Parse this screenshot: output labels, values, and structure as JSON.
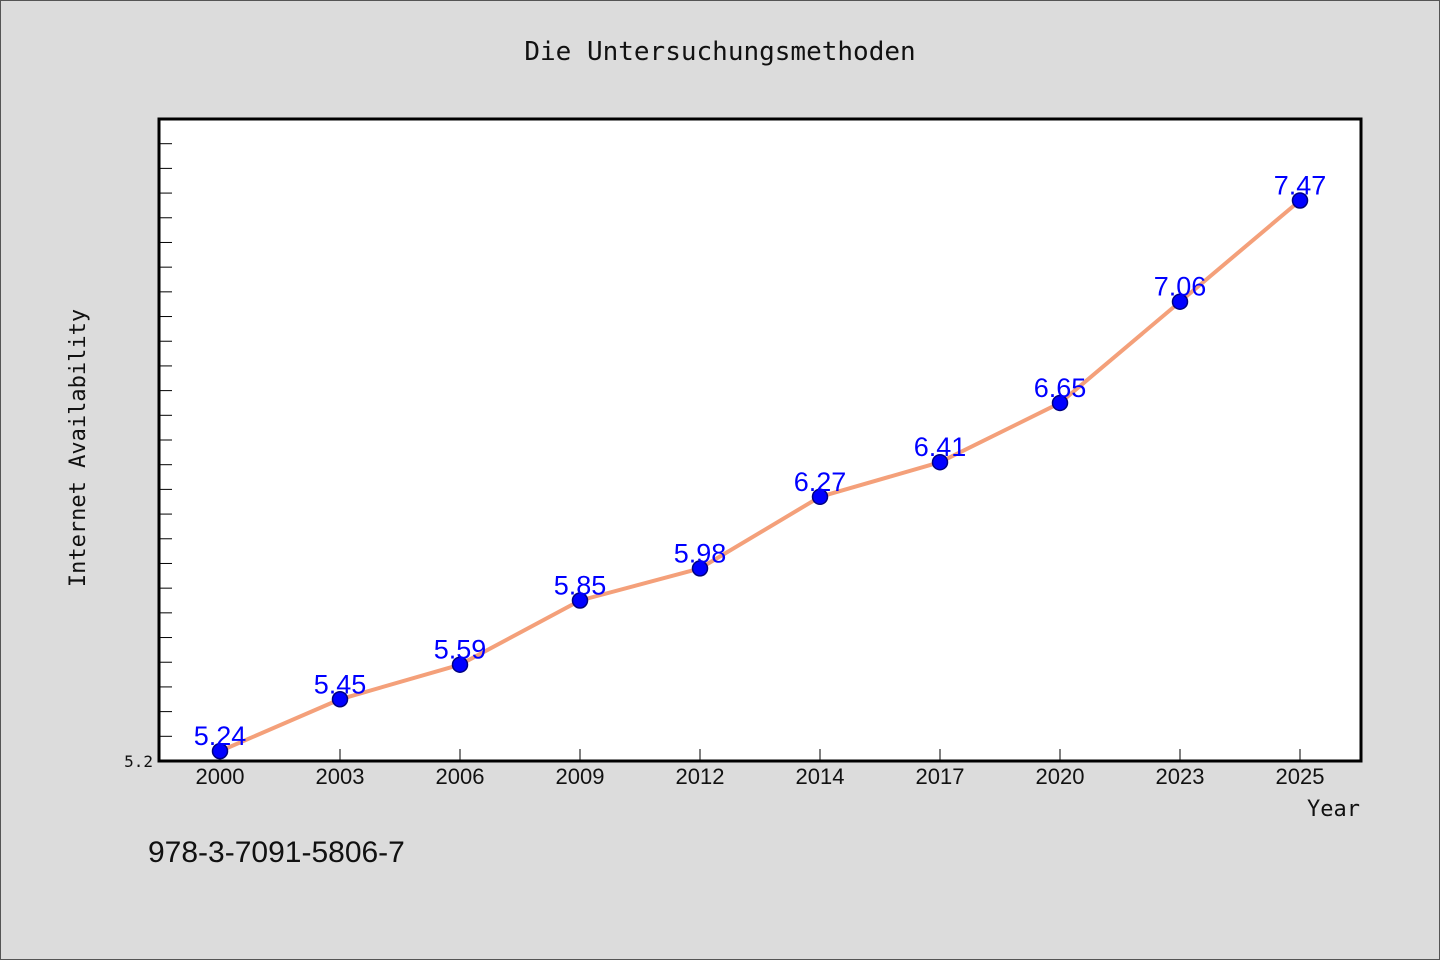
{
  "chart_data": {
    "type": "line",
    "title": "Die Untersuchungsmethoden",
    "xlabel": "Year",
    "ylabel": "Internet Availability",
    "categories": [
      "2000",
      "2003",
      "2006",
      "2009",
      "2012",
      "2014",
      "2017",
      "2020",
      "2023",
      "2025"
    ],
    "series": [
      {
        "values": [
          5.24,
          5.45,
          5.59,
          5.85,
          5.98,
          6.27,
          6.41,
          6.65,
          7.06,
          7.47
        ],
        "data_labels": [
          "5.24",
          "5.45",
          "5.59",
          "5.85",
          "5.98",
          "6.27",
          "6.41",
          "6.65",
          "7.06",
          "7.47"
        ]
      }
    ],
    "y_tick_labels": [
      "5.2"
    ],
    "ylim": [
      5.2,
      7.8
    ],
    "y_minor_tick_step": 0.1,
    "grid": false,
    "legend": "none",
    "colors": {
      "line": "#f4a07a",
      "marker_fill": "#0000ff",
      "marker_edge": "#000080",
      "data_label": "#0000ff",
      "plot_bg": "#ffffff",
      "figure_bg": "#dcdcdc"
    }
  },
  "footer": {
    "isbn": "978-3-7091-5806-7"
  }
}
